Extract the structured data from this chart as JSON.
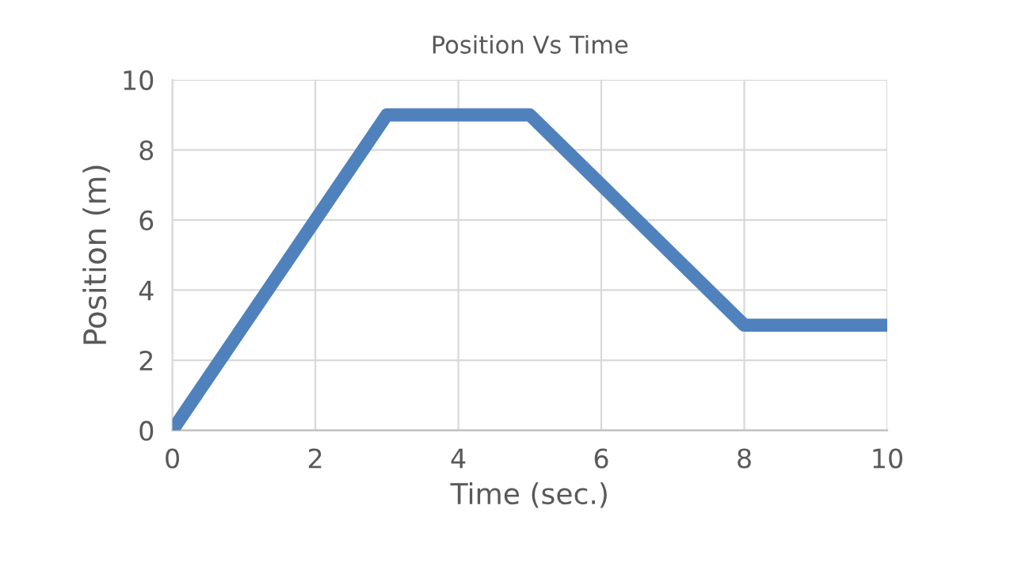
{
  "chart_data": {
    "type": "line",
    "title": "Position Vs Time",
    "xlabel": "Time (sec.)",
    "ylabel": "Position (m)",
    "x": [
      0,
      3,
      5,
      8,
      10
    ],
    "series": [
      {
        "color": "#4f81bd",
        "values": [
          0,
          9,
          9,
          3,
          3
        ]
      }
    ],
    "xlim": [
      0,
      10
    ],
    "ylim": [
      0,
      10
    ],
    "xticks": [
      0,
      2,
      4,
      6,
      8,
      10
    ],
    "yticks": [
      0,
      2,
      4,
      6,
      8,
      10
    ],
    "grid": true,
    "line_style": "solid",
    "marker": "none"
  }
}
